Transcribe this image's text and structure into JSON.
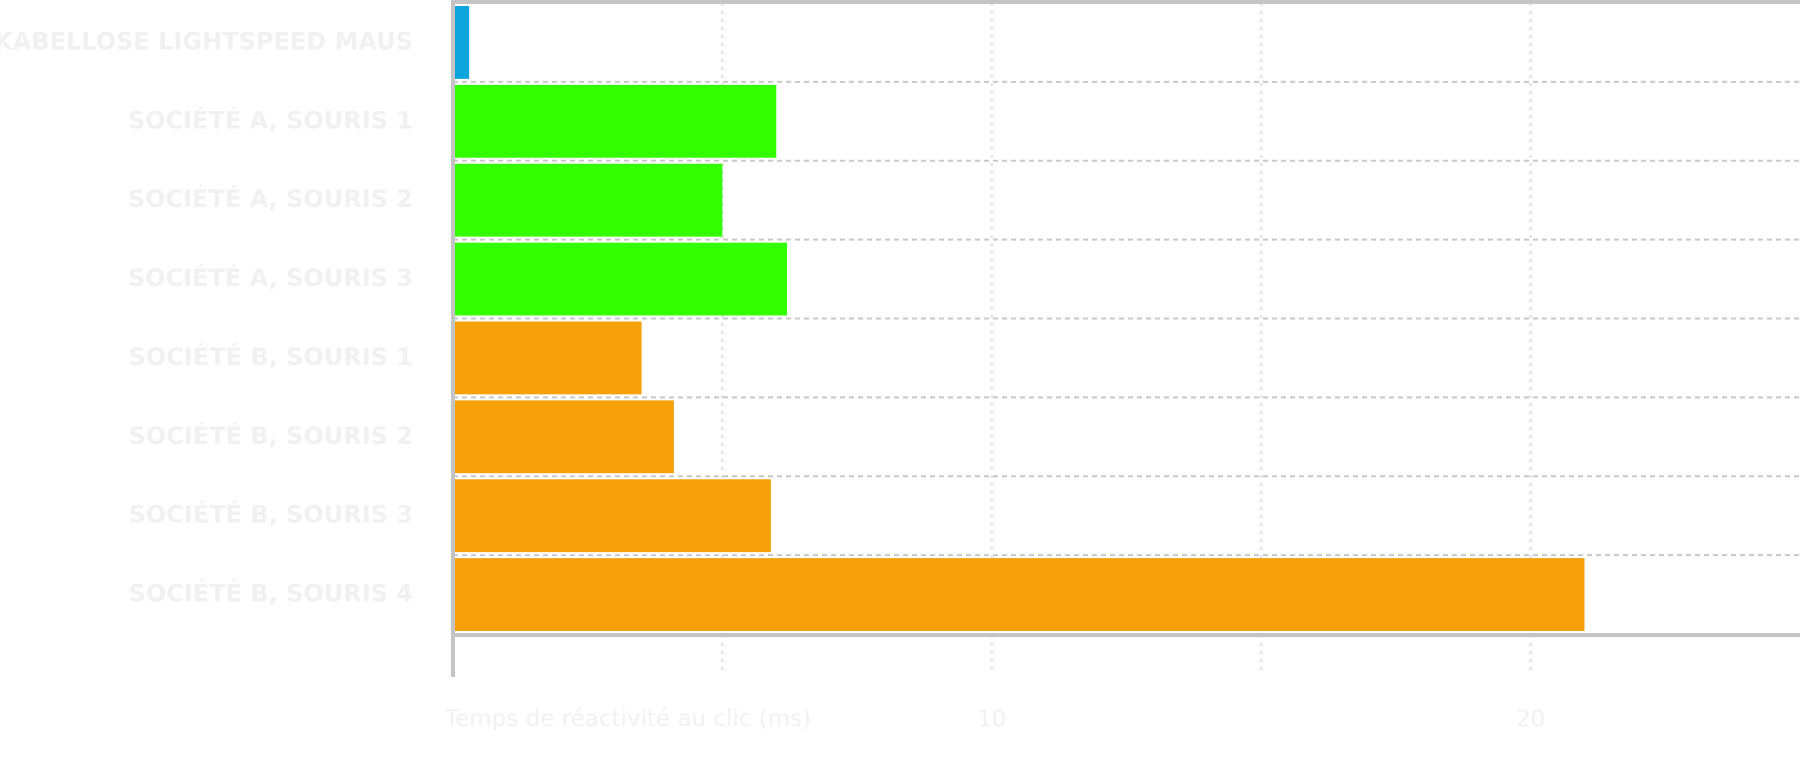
{
  "chart_data": {
    "type": "bar",
    "orientation": "horizontal",
    "categories": [
      "KABELLOSE LIGHTSPEED MAUS",
      "SOCIÉTÉ A, SOURIS 1",
      "SOCIÉTÉ A, SOURIS 2",
      "SOCIÉTÉ A, SOURIS 3",
      "SOCIÉTÉ B, SOURIS 1",
      "SOCIÉTÉ B, SOURIS 2",
      "SOCIÉTÉ B, SOURIS 3",
      "SOCIÉTÉ B, SOURIS 4"
    ],
    "values": [
      0.3,
      6.0,
      5.0,
      6.2,
      3.5,
      4.1,
      5.9,
      21.0
    ],
    "colors": [
      "#0ea5dd",
      "#33ff00",
      "#33ff00",
      "#33ff00",
      "#f7a10a",
      "#f7a10a",
      "#f7a10a",
      "#f7a10a"
    ],
    "x_label": "Temps de réactivité au clic (ms)",
    "xlim": [
      0,
      25
    ],
    "xticks": [
      {
        "value": 5,
        "label": null
      },
      10,
      {
        "value": 15,
        "label": null
      },
      20
    ],
    "grid": true
  }
}
